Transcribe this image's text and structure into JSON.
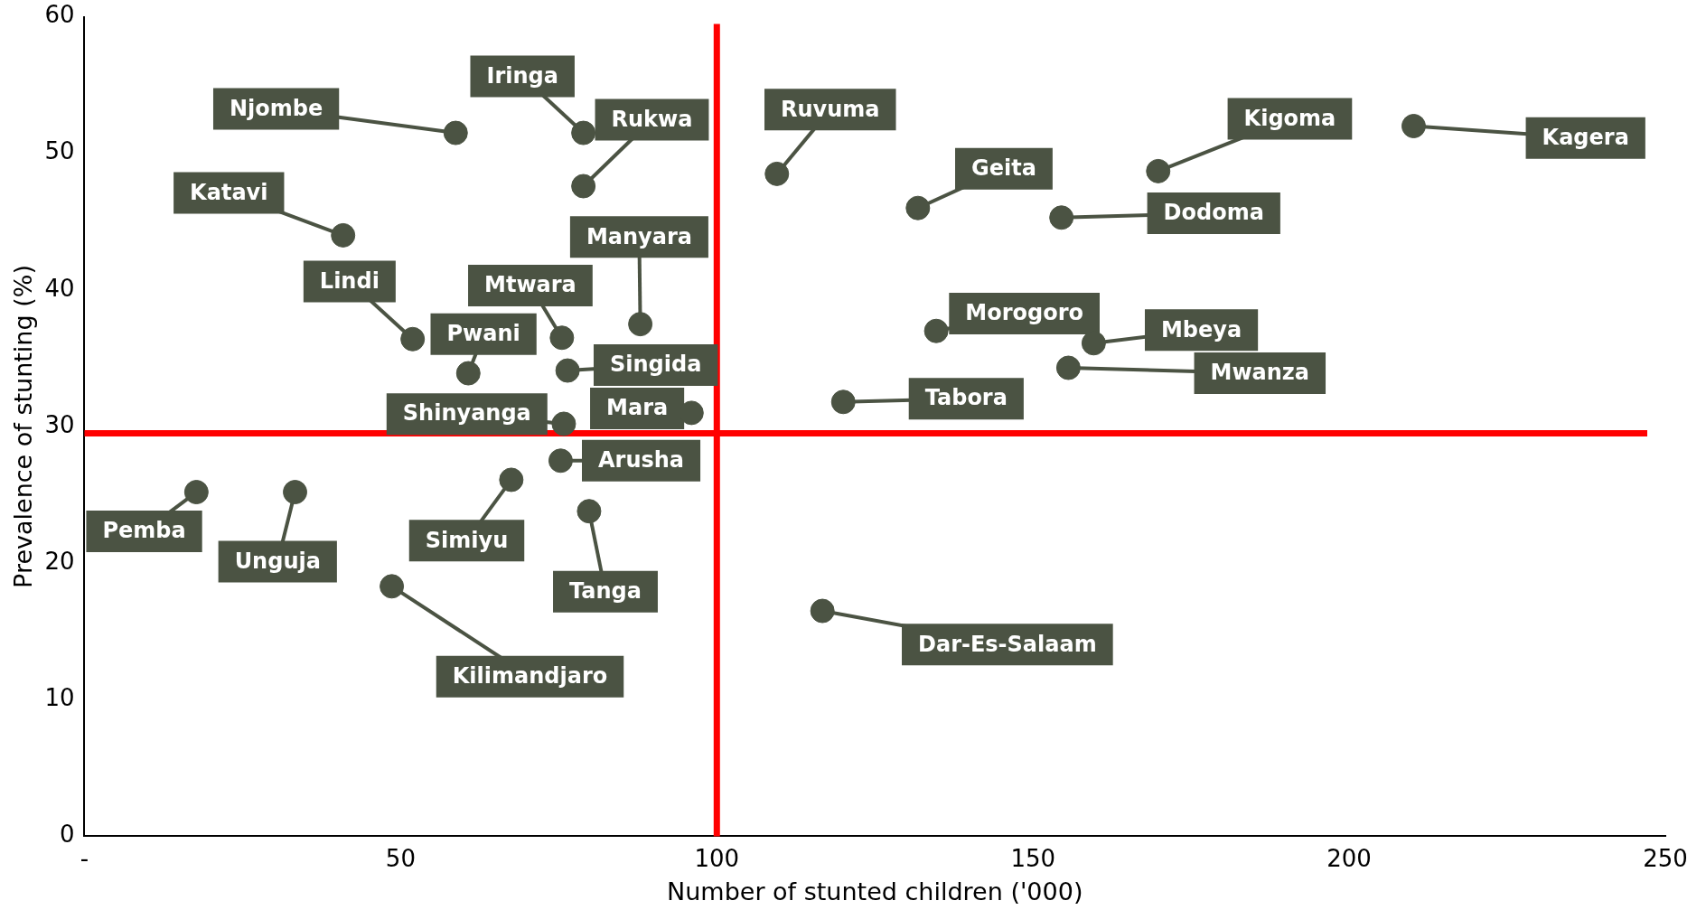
{
  "chart_data": {
    "type": "scatter",
    "xlabel": "Number of stunted children ('000)",
    "ylabel": "Prevalence of stunting (%)",
    "x": [
      58.7,
      78.9,
      78.9,
      40.9,
      51.9,
      60.7,
      75.5,
      76.4,
      87.9,
      75.8,
      96,
      75.3,
      17.7,
      33.3,
      67.5,
      79.8,
      48.6,
      109.5,
      131.8,
      169.8,
      210.2,
      154.5,
      134.7,
      159.6,
      155.6,
      120.0,
      116.7
    ],
    "values": [
      51.5,
      51.5,
      47.6,
      44.0,
      36.4,
      33.9,
      36.5,
      34.1,
      37.5,
      30.2,
      31,
      27.5,
      25.2,
      25.2,
      26.1,
      23.8,
      18.3,
      48.5,
      46.0,
      48.7,
      52.0,
      45.3,
      37.0,
      36.1,
      34.3,
      31.8,
      16.5
    ],
    "color": "#4b5343",
    "marker": "circle",
    "grid": false,
    "legend": false,
    "xlim": [
      0,
      250
    ],
    "xticks": [
      {
        "value": 0,
        "label": "-"
      },
      50,
      100,
      150,
      200,
      250
    ],
    "ylim": [
      0,
      60
    ],
    "yticks": [
      0,
      10,
      20,
      30,
      40,
      50,
      60
    ],
    "ref_lines": [
      {
        "axis": "x",
        "value": 100,
        "color": "#ff0000"
      },
      {
        "axis": "y",
        "value": 29.5,
        "color": "#ff0000"
      }
    ],
    "annotations": [
      {
        "text": "Njombe",
        "x": 58.7,
        "y": 51.5
      },
      {
        "text": "Iringa",
        "x": 78.9,
        "y": 51.5
      },
      {
        "text": "Rukwa",
        "x": 78.9,
        "y": 47.6
      },
      {
        "text": "Katavi",
        "x": 40.9,
        "y": 44.0
      },
      {
        "text": "Lindi",
        "x": 51.9,
        "y": 36.4
      },
      {
        "text": "Pwani",
        "x": 60.7,
        "y": 33.9
      },
      {
        "text": "Mtwara",
        "x": 75.5,
        "y": 36.5
      },
      {
        "text": "Singida",
        "x": 76.4,
        "y": 34.1
      },
      {
        "text": "Manyara",
        "x": 87.9,
        "y": 37.5
      },
      {
        "text": "Shinyanga",
        "x": 75.8,
        "y": 30.2
      },
      {
        "text": "Mara",
        "x": 96,
        "y": 31
      },
      {
        "text": "Arusha",
        "x": 75.3,
        "y": 27.5
      },
      {
        "text": "Pemba",
        "x": 17.7,
        "y": 25.2
      },
      {
        "text": "Unguja",
        "x": 33.3,
        "y": 25.2
      },
      {
        "text": "Simiyu",
        "x": 67.5,
        "y": 26.1
      },
      {
        "text": "Tanga",
        "x": 79.8,
        "y": 23.8
      },
      {
        "text": "Kilimandjaro",
        "x": 48.6,
        "y": 18.3
      },
      {
        "text": "Ruvuma",
        "x": 109.5,
        "y": 48.5
      },
      {
        "text": "Geita",
        "x": 131.8,
        "y": 46.0
      },
      {
        "text": "Kigoma",
        "x": 169.8,
        "y": 48.7
      },
      {
        "text": "Kagera",
        "x": 210.2,
        "y": 52.0
      },
      {
        "text": "Dodoma",
        "x": 154.5,
        "y": 45.3
      },
      {
        "text": "Morogoro",
        "x": 134.7,
        "y": 37.0
      },
      {
        "text": "Mbeya",
        "x": 159.6,
        "y": 36.1
      },
      {
        "text": "Mwanza",
        "x": 155.6,
        "y": 34.3
      },
      {
        "text": "Tabora",
        "x": 120.0,
        "y": 31.8
      },
      {
        "text": "Dar-Es-Salaam",
        "x": 116.7,
        "y": 16.5
      }
    ]
  }
}
